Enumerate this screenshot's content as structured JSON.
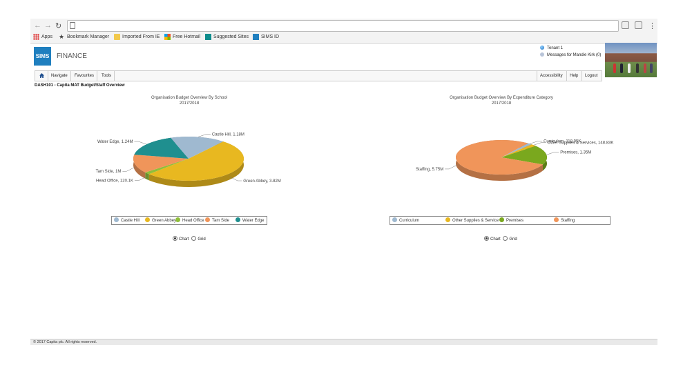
{
  "browser": {
    "bookmarks": [
      {
        "label": "Apps"
      },
      {
        "label": "Bookmark Manager"
      },
      {
        "label": "Imported From IE"
      },
      {
        "label": "Free Hotmail"
      },
      {
        "label": "Suggested Sites"
      },
      {
        "label": "SIMS ID"
      }
    ]
  },
  "header": {
    "logo_text": "SIMS",
    "product": "FINANCE",
    "tenant": "Tenant 1",
    "messages": "Messages for Mandie Kirk (0)"
  },
  "menu": {
    "navigate": "Navigate",
    "favourites": "Favourites",
    "tools": "Tools",
    "accessibility": "Accessibility",
    "help": "Help",
    "logout": "Logout"
  },
  "page_title": "DASH101 - Capita MAT Budget/Staff Overview",
  "chart_data": [
    {
      "type": "pie",
      "title": "Organisation Budget Overview By School",
      "subtitle": "2017/2018",
      "categories": [
        "Castle Hill",
        "Green Abbey",
        "Head Office",
        "Tam Side",
        "Water Edge"
      ],
      "values": [
        1.18,
        3.82,
        0.1201,
        1.0,
        1.24
      ],
      "data_labels": [
        "Castle Hill, 1.18M",
        "Green Abbey, 3.82M",
        "Head Office, 120.1K",
        "Tam Side, 1M",
        "Water Edge, 1.24M"
      ],
      "colors": [
        "#9fb9d0",
        "#e8b820",
        "#8fbf3a",
        "#f0955a",
        "#1f8f8f"
      ],
      "legend_labels": [
        "Castle Hill",
        "Green Abbey",
        "Head Office",
        "Tam Side",
        "Water Edge"
      ],
      "legend": "bottom"
    },
    {
      "type": "pie",
      "title": "Organisation Budget Overview By Expenditure Category",
      "subtitle": "2017/2018",
      "categories": [
        "Curriculum",
        "Other Supplies & Services",
        "Premises",
        "Staffing"
      ],
      "values": [
        0.11895,
        0.14883,
        1.35,
        5.75
      ],
      "data_labels": [
        "Curriculum, 118.95K",
        "Other Supplies & Services, 148.83K",
        "Premises, 1.35M",
        "Staffing, 5.75M"
      ],
      "colors": [
        "#9fb9d0",
        "#e8b820",
        "#7aa81e",
        "#f0955a"
      ],
      "legend_labels": [
        "Curriculum",
        "Other Supplies & Service",
        "Premises",
        "Staffing"
      ],
      "legend": "bottom"
    }
  ],
  "view_options": {
    "chart": "Chart",
    "grid": "Grid",
    "selected": "Chart"
  },
  "footer": "© 2017 Capita plc.  All rights reserved."
}
